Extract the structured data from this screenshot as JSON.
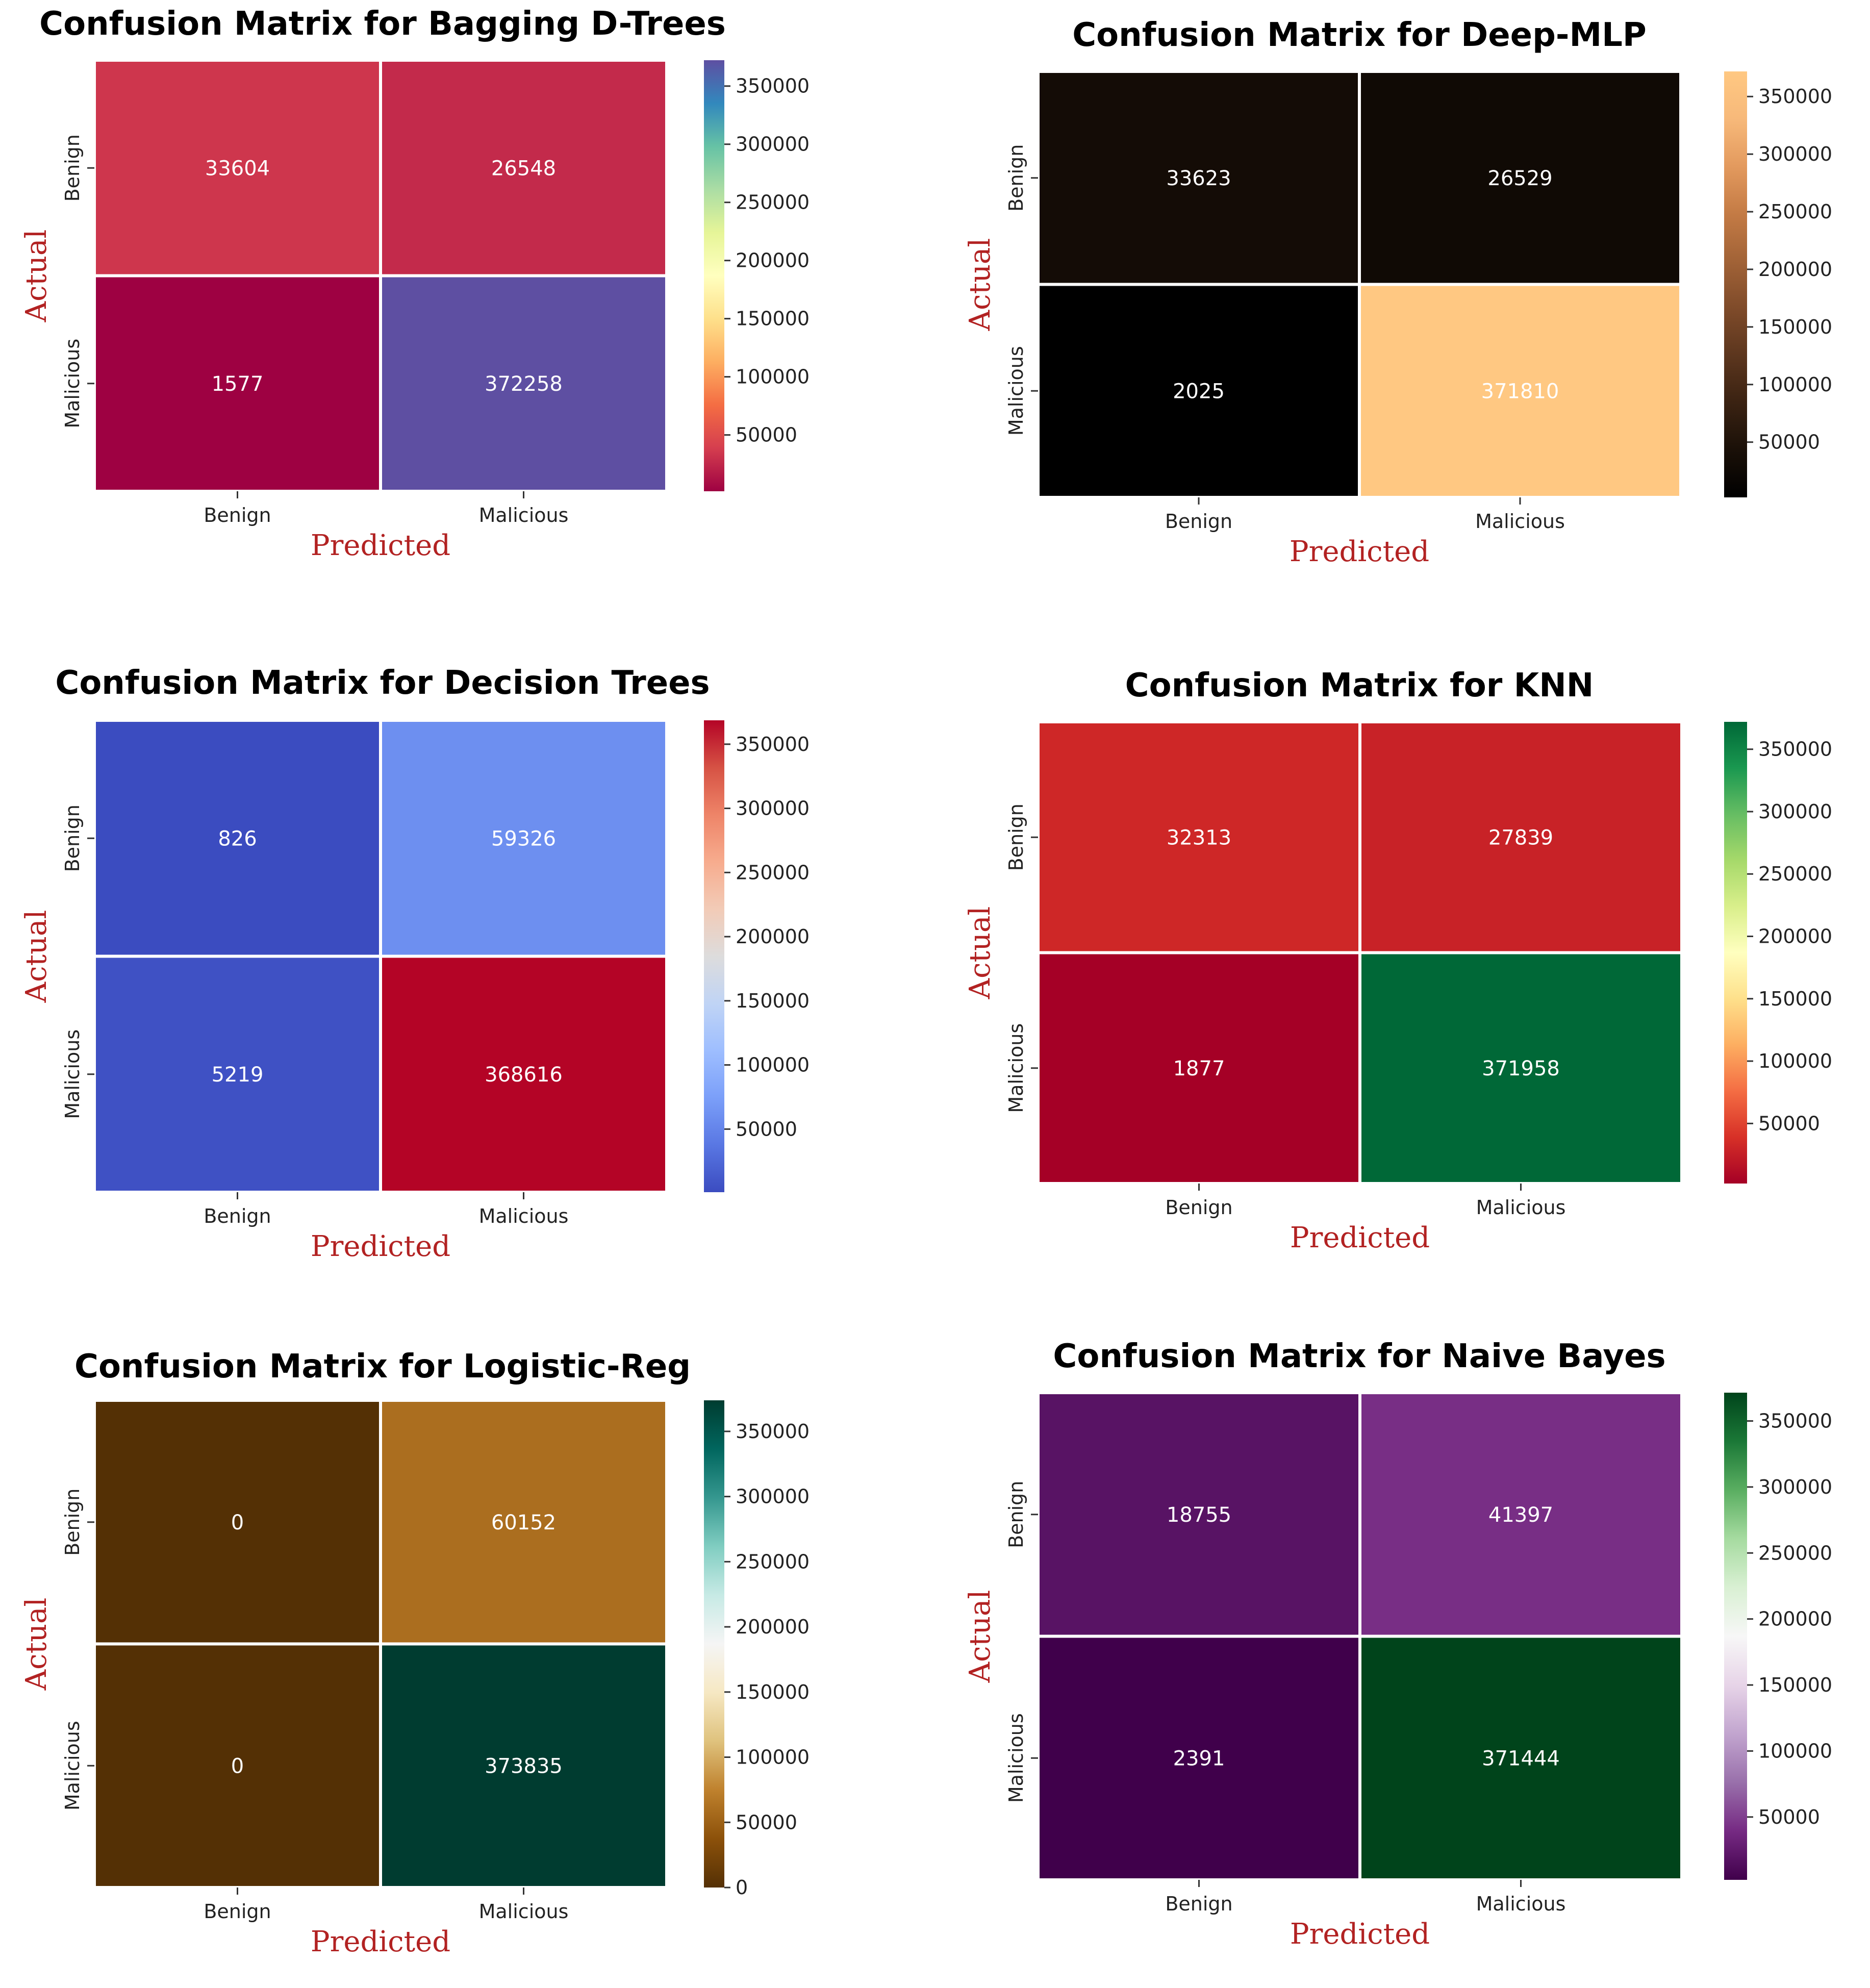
{
  "chart_data": [
    {
      "type": "heatmap",
      "title": "Confusion Matrix for Bagging D-Trees",
      "xlabel": "Predicted",
      "ylabel": "Actual",
      "x_tick_labels": [
        "Benign",
        "Malicious"
      ],
      "y_tick_labels": [
        "Benign",
        "Malicious"
      ],
      "matrix": [
        [
          33604,
          26548
        ],
        [
          1577,
          372258
        ]
      ],
      "colormap": [
        "#9e0142",
        "#d53e4f",
        "#f46d43",
        "#fdae61",
        "#fee08b",
        "#ffffbf",
        "#e6f598",
        "#abdda4",
        "#66c2a5",
        "#3288bd",
        "#5e4fa2"
      ],
      "colorbar_ticks": [
        "350000",
        "300000",
        "250000",
        "200000",
        "150000",
        "100000",
        "50000"
      ],
      "colorbar_tick_values": [
        350000,
        300000,
        250000,
        200000,
        150000,
        100000,
        50000
      ],
      "vmin": 1577,
      "vmax": 372258
    },
    {
      "type": "heatmap",
      "title": "Confusion Matrix for Deep-MLP",
      "xlabel": "Predicted",
      "ylabel": "Actual",
      "x_tick_labels": [
        "Benign",
        "Malicious"
      ],
      "y_tick_labels": [
        "Benign",
        "Malicious"
      ],
      "matrix": [
        [
          33623,
          26529
        ],
        [
          2025,
          371810
        ]
      ],
      "colormap": [
        "#000000",
        "#1a1008",
        "#3a2212",
        "#5c361e",
        "#7f4b2a",
        "#a26337",
        "#c47b45",
        "#e39a5e",
        "#f7b97a",
        "#ffc882"
      ],
      "colorbar_ticks": [
        "350000",
        "300000",
        "250000",
        "200000",
        "150000",
        "100000",
        "50000"
      ],
      "colorbar_tick_values": [
        350000,
        300000,
        250000,
        200000,
        150000,
        100000,
        50000
      ],
      "vmin": 2025,
      "vmax": 371810
    },
    {
      "type": "heatmap",
      "title": "Confusion Matrix for Decision Trees",
      "xlabel": "Predicted",
      "ylabel": "Actual",
      "x_tick_labels": [
        "Benign",
        "Malicious"
      ],
      "y_tick_labels": [
        "Benign",
        "Malicious"
      ],
      "matrix": [
        [
          826,
          59326
        ],
        [
          5219,
          368616
        ]
      ],
      "colormap": [
        "#3b4cc0",
        "#5977e3",
        "#7b9ff9",
        "#9ebeff",
        "#c0d4f5",
        "#dddcdc",
        "#f2cbb7",
        "#f7ac8e",
        "#ee8468",
        "#d65244",
        "#b40426"
      ],
      "colorbar_ticks": [
        "350000",
        "300000",
        "250000",
        "200000",
        "150000",
        "100000",
        "50000"
      ],
      "colorbar_tick_values": [
        350000,
        300000,
        250000,
        200000,
        150000,
        100000,
        50000
      ],
      "vmin": 826,
      "vmax": 368616
    },
    {
      "type": "heatmap",
      "title": "Confusion Matrix for KNN",
      "xlabel": "Predicted",
      "ylabel": "Actual",
      "x_tick_labels": [
        "Benign",
        "Malicious"
      ],
      "y_tick_labels": [
        "Benign",
        "Malicious"
      ],
      "matrix": [
        [
          32313,
          27839
        ],
        [
          1877,
          371958
        ]
      ],
      "colormap": [
        "#a50026",
        "#d73027",
        "#f46d43",
        "#fdae61",
        "#fee08b",
        "#ffffbf",
        "#d9ef8b",
        "#a6d96a",
        "#66bd63",
        "#1a9850",
        "#006837"
      ],
      "colorbar_ticks": [
        "350000",
        "300000",
        "250000",
        "200000",
        "150000",
        "100000",
        "50000"
      ],
      "colorbar_tick_values": [
        350000,
        300000,
        250000,
        200000,
        150000,
        100000,
        50000
      ],
      "vmin": 1877,
      "vmax": 371958
    },
    {
      "type": "heatmap",
      "title": "Confusion Matrix for Logistic-Reg",
      "xlabel": "Predicted",
      "ylabel": "Actual",
      "x_tick_labels": [
        "Benign",
        "Malicious"
      ],
      "y_tick_labels": [
        "Benign",
        "Malicious"
      ],
      "matrix": [
        [
          0,
          60152
        ],
        [
          0,
          373835
        ]
      ],
      "colormap": [
        "#543005",
        "#8c510a",
        "#bf812d",
        "#dfc27d",
        "#f6e8c3",
        "#f5f5f5",
        "#c7eae5",
        "#80cdc1",
        "#35978f",
        "#01665e",
        "#003c30"
      ],
      "colorbar_ticks": [
        "350000",
        "300000",
        "250000",
        "200000",
        "150000",
        "100000",
        "50000",
        "0"
      ],
      "colorbar_tick_values": [
        350000,
        300000,
        250000,
        200000,
        150000,
        100000,
        50000,
        0
      ],
      "vmin": 0,
      "vmax": 373835
    },
    {
      "type": "heatmap",
      "title": "Confusion Matrix for Naive Bayes",
      "xlabel": "Predicted",
      "ylabel": "Actual",
      "x_tick_labels": [
        "Benign",
        "Malicious"
      ],
      "y_tick_labels": [
        "Benign",
        "Malicious"
      ],
      "matrix": [
        [
          18755,
          41397
        ],
        [
          2391,
          371444
        ]
      ],
      "colormap": [
        "#40004b",
        "#762a83",
        "#9970ab",
        "#c2a5cf",
        "#e7d4e8",
        "#f7f7f7",
        "#d9f0d3",
        "#a6dba0",
        "#5aae61",
        "#1b7837",
        "#00441b"
      ],
      "colorbar_ticks": [
        "350000",
        "300000",
        "250000",
        "200000",
        "150000",
        "100000",
        "50000"
      ],
      "colorbar_tick_values": [
        350000,
        300000,
        250000,
        200000,
        150000,
        100000,
        50000
      ],
      "vmin": 2391,
      "vmax": 371444
    }
  ]
}
